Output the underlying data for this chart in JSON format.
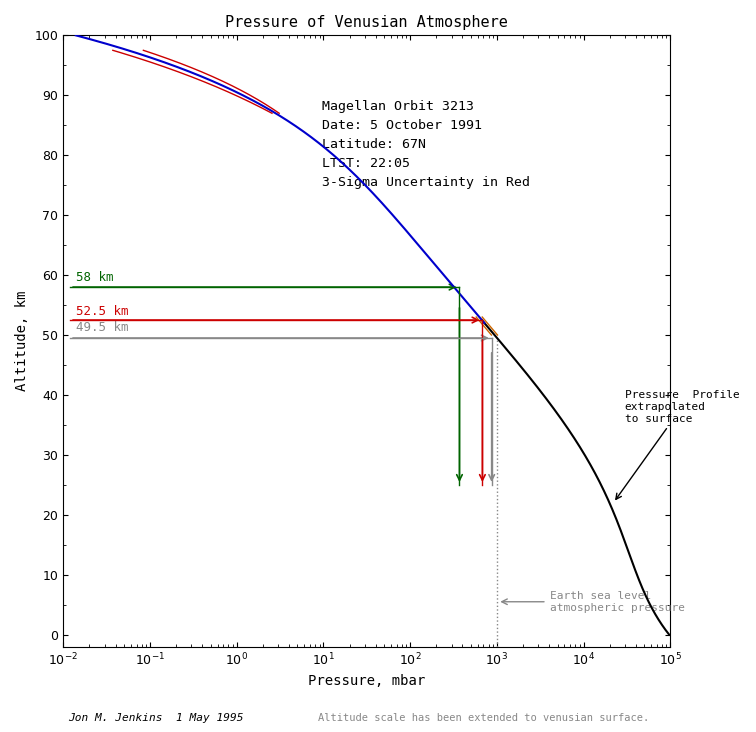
{
  "title": "Pressure of Venusian Atmosphere",
  "xlabel": "Pressure, mbar",
  "ylabel": "Altitude, km",
  "footer_left": "Jon M. Jenkins  1 May 1995",
  "footer_right": "Altitude scale has been extended to venusian surface.",
  "label_58km": "58 km",
  "label_525km": "52.5 km",
  "label_495km": "49.5 km",
  "green_color": "#006400",
  "red_color": "#cc0000",
  "gray_color": "#888888",
  "orange_color": "#cc6600",
  "blue_color": "#0000cc",
  "black_color": "#000000",
  "p_at_58km": 370.0,
  "p_at_525km": 680.0,
  "p_at_495km": 870.0,
  "earth_p": 1013.0,
  "info_text": "  Magellan Orbit 3213\n  Date: 5 October 1991\n  Latitude: 67N\n  LTST: 22:05\n  3-Sigma Uncertainty in Red",
  "arrow_press_label": "Pressure  Profile\nextrapolated\nto surface",
  "arrow_earth_label": "Earth sea level\natmospheric pressure"
}
